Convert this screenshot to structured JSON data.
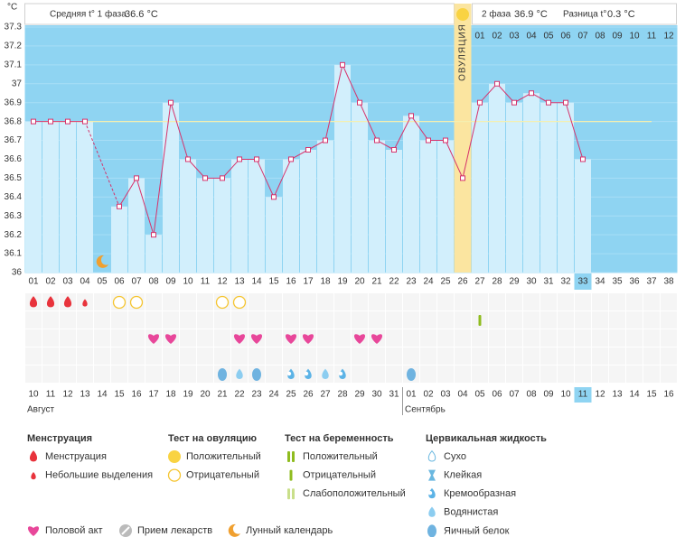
{
  "chart_data": {
    "type": "line",
    "y_label": "°C",
    "categories": [
      "01",
      "02",
      "03",
      "04",
      "05",
      "06",
      "07",
      "08",
      "09",
      "10",
      "11",
      "12",
      "13",
      "14",
      "15",
      "16",
      "17",
      "18",
      "19",
      "20",
      "21",
      "22",
      "23",
      "24",
      "25",
      "26",
      "27",
      "28",
      "29",
      "30",
      "31",
      "32",
      "33",
      "34",
      "35",
      "36",
      "37",
      "38"
    ],
    "values": [
      36.8,
      36.8,
      36.8,
      36.8,
      null,
      36.35,
      36.5,
      36.2,
      36.9,
      36.6,
      36.5,
      36.5,
      36.6,
      36.6,
      36.4,
      36.6,
      36.65,
      36.7,
      37.1,
      36.9,
      36.7,
      36.65,
      36.83,
      36.7,
      36.7,
      36.5,
      36.9,
      37.0,
      36.9,
      36.95,
      36.9,
      36.9,
      36.6,
      null,
      null,
      null,
      null,
      null
    ],
    "color": "#d6336c",
    "ylim": [
      36,
      37.3
    ],
    "yticks": [
      36,
      36.1,
      36.2,
      36.3,
      36.4,
      36.5,
      36.6,
      36.7,
      36.8,
      36.9,
      37,
      37.1,
      37.2,
      37.3
    ],
    "grid": true,
    "cover_line": 36.8,
    "ovulation_day": "26",
    "ovulation_label": "ОВУЛЯЦИЯ",
    "phase2_days": [
      "01",
      "02",
      "03",
      "04",
      "05",
      "06",
      "07",
      "08",
      "09",
      "10",
      "11",
      "12"
    ],
    "today": "33"
  },
  "header": {
    "phase1_label": "Средняя t° 1 фаза",
    "phase1_value": "36.6 °C",
    "phase2_label": "2 фаза",
    "phase2_value": "36.9 °C",
    "diff_label": "Разница t°",
    "diff_value": "0.3 °C"
  },
  "dates": [
    {
      "label": "10"
    },
    {
      "label": "11",
      "weekend": true
    },
    {
      "label": "12",
      "weekend": true
    },
    {
      "label": "13"
    },
    {
      "label": "14"
    },
    {
      "label": "15"
    },
    {
      "label": "16"
    },
    {
      "label": "17"
    },
    {
      "label": "18",
      "weekend": true
    },
    {
      "label": "19",
      "weekend": true
    },
    {
      "label": "20"
    },
    {
      "label": "21"
    },
    {
      "label": "22"
    },
    {
      "label": "23"
    },
    {
      "label": "24"
    },
    {
      "label": "25",
      "weekend": true
    },
    {
      "label": "26",
      "weekend": true
    },
    {
      "label": "27"
    },
    {
      "label": "28"
    },
    {
      "label": "29"
    },
    {
      "label": "30"
    },
    {
      "label": "31"
    },
    {
      "label": "01",
      "weekend": true
    },
    {
      "label": "02",
      "weekend": true
    },
    {
      "label": "03"
    },
    {
      "label": "04"
    },
    {
      "label": "05"
    },
    {
      "label": "06"
    },
    {
      "label": "07"
    },
    {
      "label": "08",
      "weekend": true
    },
    {
      "label": "09",
      "weekend": true
    },
    {
      "label": "10"
    },
    {
      "label": "11"
    },
    {
      "label": "12"
    },
    {
      "label": "13"
    },
    {
      "label": "14"
    },
    {
      "label": "15",
      "weekend": true
    },
    {
      "label": "16",
      "weekend": true
    }
  ],
  "months": [
    "Август",
    "Сентябрь"
  ],
  "day_marks": [
    {
      "day": "01",
      "icon": "menstruation-heavy"
    },
    {
      "day": "02",
      "icon": "menstruation-heavy"
    },
    {
      "day": "03",
      "icon": "menstruation-heavy"
    },
    {
      "day": "04",
      "icon": "menstruation-light"
    },
    {
      "day": "05",
      "icon": "moon"
    },
    {
      "day": "06",
      "icon": "ovulation-neg"
    },
    {
      "day": "07",
      "icon": "ovulation-neg"
    },
    {
      "day": "12",
      "icon": "ovulation-neg"
    },
    {
      "day": "13",
      "icon": "ovulation-neg"
    },
    {
      "day": "27",
      "icon": "pregnancy-neg"
    },
    {
      "day": "08",
      "icon": "sex"
    },
    {
      "day": "09",
      "icon": "sex"
    },
    {
      "day": "13",
      "icon": "sex"
    },
    {
      "day": "14",
      "icon": "sex"
    },
    {
      "day": "16",
      "icon": "sex"
    },
    {
      "day": "17",
      "icon": "sex"
    },
    {
      "day": "20",
      "icon": "sex"
    },
    {
      "day": "21",
      "icon": "sex"
    },
    {
      "day": "12",
      "icon": "cf-egg"
    },
    {
      "day": "13",
      "icon": "cf-watery"
    },
    {
      "day": "14",
      "icon": "cf-egg"
    },
    {
      "day": "16",
      "icon": "cf-creamy"
    },
    {
      "day": "17",
      "icon": "cf-creamy"
    },
    {
      "day": "18",
      "icon": "cf-watery"
    },
    {
      "day": "19",
      "icon": "cf-creamy"
    },
    {
      "day": "23",
      "icon": "cf-egg"
    }
  ],
  "legend": {
    "groups": [
      {
        "title": "Менструация",
        "items": [
          {
            "icon": "menstruation-heavy",
            "label": "Менструация"
          },
          {
            "icon": "menstruation-light",
            "label": "Небольшие выделения"
          }
        ]
      },
      {
        "title": "Тест на овуляцию",
        "items": [
          {
            "icon": "ovulation-pos",
            "label": "Положительный"
          },
          {
            "icon": "ovulation-neg",
            "label": "Отрицательный"
          }
        ]
      },
      {
        "title": "Тест на беременность",
        "items": [
          {
            "icon": "pregnancy-pos",
            "label": "Положительный"
          },
          {
            "icon": "pregnancy-neg",
            "label": "Отрицательный"
          },
          {
            "icon": "pregnancy-weak",
            "label": "Слабоположительный"
          }
        ]
      },
      {
        "title": "Цервикальная жидкость",
        "items": [
          {
            "icon": "cf-dry",
            "label": "Сухо"
          },
          {
            "icon": "cf-sticky",
            "label": "Клейкая"
          },
          {
            "icon": "cf-creamy",
            "label": "Кремообразная"
          },
          {
            "icon": "cf-watery",
            "label": "Водянистая"
          },
          {
            "icon": "cf-egg",
            "label": "Яичный белок"
          }
        ]
      }
    ],
    "extras": [
      {
        "icon": "sex",
        "label": "Половой акт"
      },
      {
        "icon": "pill",
        "label": "Прием лекарств"
      },
      {
        "icon": "moon",
        "label": "Лунный календарь"
      }
    ]
  }
}
